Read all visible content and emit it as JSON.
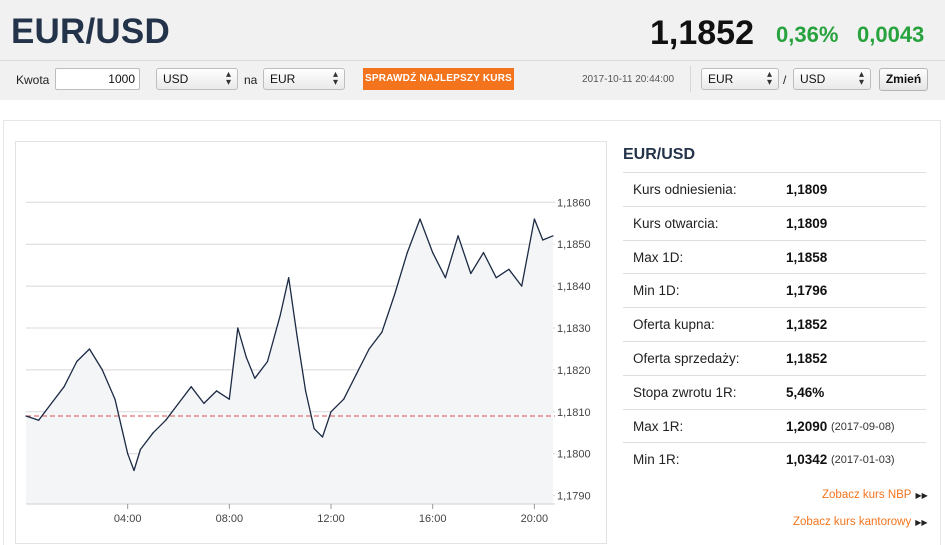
{
  "header": {
    "pair": "EUR/USD",
    "price": "1,1852",
    "change_pct": "0,36%",
    "change_abs": "0,0043"
  },
  "converter": {
    "amount_label": "Kwota",
    "amount_value": "1000",
    "from_currency": "USD",
    "to_label": "na",
    "to_currency": "EUR",
    "best_rate_button": "SPRAWDŹ NAJLEPSZY KURS",
    "timestamp": "2017-10-11 20:44:00",
    "pair_base": "EUR",
    "pair_sep": "/",
    "pair_quote": "USD",
    "change_button": "Zmień"
  },
  "colors": {
    "accent": "#f3741d",
    "positive": "#27a23d",
    "title": "#23334a",
    "line": "#1c2a44",
    "reference": "#d9534f"
  },
  "info": {
    "title": "EUR/USD",
    "rows": [
      {
        "label": "Kurs odniesienia:",
        "value": "1,1809",
        "date": ""
      },
      {
        "label": "Kurs otwarcia:",
        "value": "1,1809",
        "date": ""
      },
      {
        "label": "Max 1D:",
        "value": "1,1858",
        "date": ""
      },
      {
        "label": "Min 1D:",
        "value": "1,1796",
        "date": ""
      },
      {
        "label": "Oferta kupna:",
        "value": "1,1852",
        "date": ""
      },
      {
        "label": "Oferta sprzedaży:",
        "value": "1,1852",
        "date": ""
      },
      {
        "label": "Stopa zwrotu 1R:",
        "value": "5,46%",
        "date": ""
      },
      {
        "label": "Max 1R:",
        "value": "1,2090",
        "date": "(2017-09-08)"
      },
      {
        "label": "Min 1R:",
        "value": "1,0342",
        "date": "(2017-01-03)"
      }
    ],
    "link_nbp": "Zobacz kurs NBP",
    "link_kantor": "Zobacz kurs kantorowy"
  },
  "chart_data": {
    "type": "line",
    "xlim": [
      "00:00",
      "20:44"
    ],
    "ylim": [
      1.1788,
      1.1872
    ],
    "yticks": [
      1.179,
      1.18,
      1.181,
      1.182,
      1.183,
      1.184,
      1.185,
      1.186
    ],
    "ytick_labels": [
      "1,1790",
      "1,1800",
      "1,1810",
      "1,1820",
      "1,1830",
      "1,1840",
      "1,1850",
      "1,1860"
    ],
    "xtick_labels": [
      "04:00",
      "08:00",
      "12:00",
      "16:00",
      "20:00"
    ],
    "reference_value": 1.1809,
    "grid": true,
    "series": [
      {
        "x": [
          "00:00",
          "00:30",
          "01:00",
          "01:30",
          "02:00",
          "02:30",
          "03:00",
          "03:30",
          "04:00",
          "04:15",
          "04:30",
          "05:00",
          "05:30",
          "06:00",
          "06:30",
          "07:00",
          "07:30",
          "08:00",
          "08:20",
          "08:40",
          "09:00",
          "09:30",
          "10:00",
          "10:20",
          "10:40",
          "11:00",
          "11:20",
          "11:40",
          "12:00",
          "12:30",
          "13:00",
          "13:30",
          "14:00",
          "14:30",
          "15:00",
          "15:30",
          "16:00",
          "16:30",
          "17:00",
          "17:30",
          "18:00",
          "18:30",
          "19:00",
          "19:30",
          "20:00",
          "20:20",
          "20:44"
        ],
        "y": [
          1.1809,
          1.1808,
          1.1812,
          1.1816,
          1.1822,
          1.1825,
          1.182,
          1.1813,
          1.18,
          1.1796,
          1.1801,
          1.1805,
          1.1808,
          1.1812,
          1.1816,
          1.1812,
          1.1815,
          1.1813,
          1.183,
          1.1823,
          1.1818,
          1.1822,
          1.1833,
          1.1842,
          1.1828,
          1.1815,
          1.1806,
          1.1804,
          1.181,
          1.1813,
          1.1819,
          1.1825,
          1.1829,
          1.1838,
          1.1848,
          1.1856,
          1.1848,
          1.1842,
          1.1852,
          1.1843,
          1.1848,
          1.1842,
          1.1844,
          1.184,
          1.1856,
          1.1851,
          1.1852
        ]
      }
    ]
  }
}
